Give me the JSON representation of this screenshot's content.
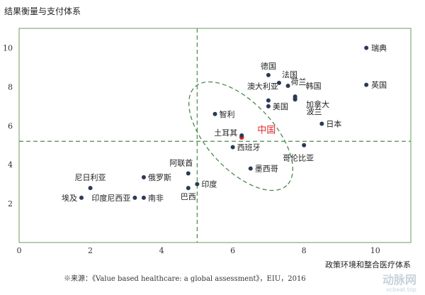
{
  "chart_data": {
    "type": "scatter",
    "ylabel": "结果衡量与支付体系",
    "xlabel": "政策环境和整合医疗体系",
    "xlim": [
      0,
      11
    ],
    "ylim": [
      0,
      11
    ],
    "xticks": [
      0,
      2,
      4,
      6,
      8,
      10
    ],
    "yticks": [
      2,
      4,
      6,
      8,
      10
    ],
    "reference_lines": {
      "x": 5,
      "y": 5.2
    },
    "points": [
      {
        "name": "瑞典",
        "x": 9.75,
        "y": 10.0
      },
      {
        "name": "英国",
        "x": 9.75,
        "y": 8.1
      },
      {
        "name": "德国",
        "x": 7.0,
        "y": 8.6
      },
      {
        "name": "法国",
        "x": 7.3,
        "y": 8.2
      },
      {
        "name": "荷兰",
        "x": 7.55,
        "y": 8.05
      },
      {
        "name": "澳大利亚",
        "x": 7.0,
        "y": 7.3
      },
      {
        "name": "美国",
        "x": 7.0,
        "y": 7.0
      },
      {
        "name": "韩国",
        "x": 7.75,
        "y": 7.5
      },
      {
        "name": "加拿大",
        "x": 7.75,
        "y": 7.35
      },
      {
        "name": "波兰",
        "x": 7.75,
        "y": 7.4
      },
      {
        "name": "日本",
        "x": 8.5,
        "y": 6.1
      },
      {
        "name": "智利",
        "x": 5.5,
        "y": 6.6
      },
      {
        "name": "中国",
        "x": 6.25,
        "y": 5.4,
        "highlight": true
      },
      {
        "name": "土耳其",
        "x": 6.25,
        "y": 5.5
      },
      {
        "name": "西班牙",
        "x": 6.0,
        "y": 4.9
      },
      {
        "name": "哥伦比亚",
        "x": 8.0,
        "y": 5.0
      },
      {
        "name": "墨西哥",
        "x": 6.5,
        "y": 3.8
      },
      {
        "name": "阿联酋",
        "x": 4.75,
        "y": 3.55
      },
      {
        "name": "俄罗斯",
        "x": 3.5,
        "y": 3.35
      },
      {
        "name": "印度",
        "x": 5.0,
        "y": 3.0
      },
      {
        "name": "巴西",
        "x": 4.75,
        "y": 2.8
      },
      {
        "name": "尼日利亚",
        "x": 2.0,
        "y": 2.8
      },
      {
        "name": "埃及",
        "x": 1.75,
        "y": 2.3
      },
      {
        "name": "印度尼西亚",
        "x": 3.25,
        "y": 2.3
      },
      {
        "name": "南非",
        "x": 3.5,
        "y": 2.3
      }
    ],
    "grid": false,
    "colors": {
      "point": "#2b3a55",
      "highlight": "#e02a2a",
      "frame": "#6a9e5e",
      "dashed": "#4e8a4c"
    }
  },
  "source_note": "※来源：《Value based healthcare: a global assessment》，EIU，2016",
  "watermark": {
    "text": "动脉网",
    "sub": "vcbeat.top"
  }
}
